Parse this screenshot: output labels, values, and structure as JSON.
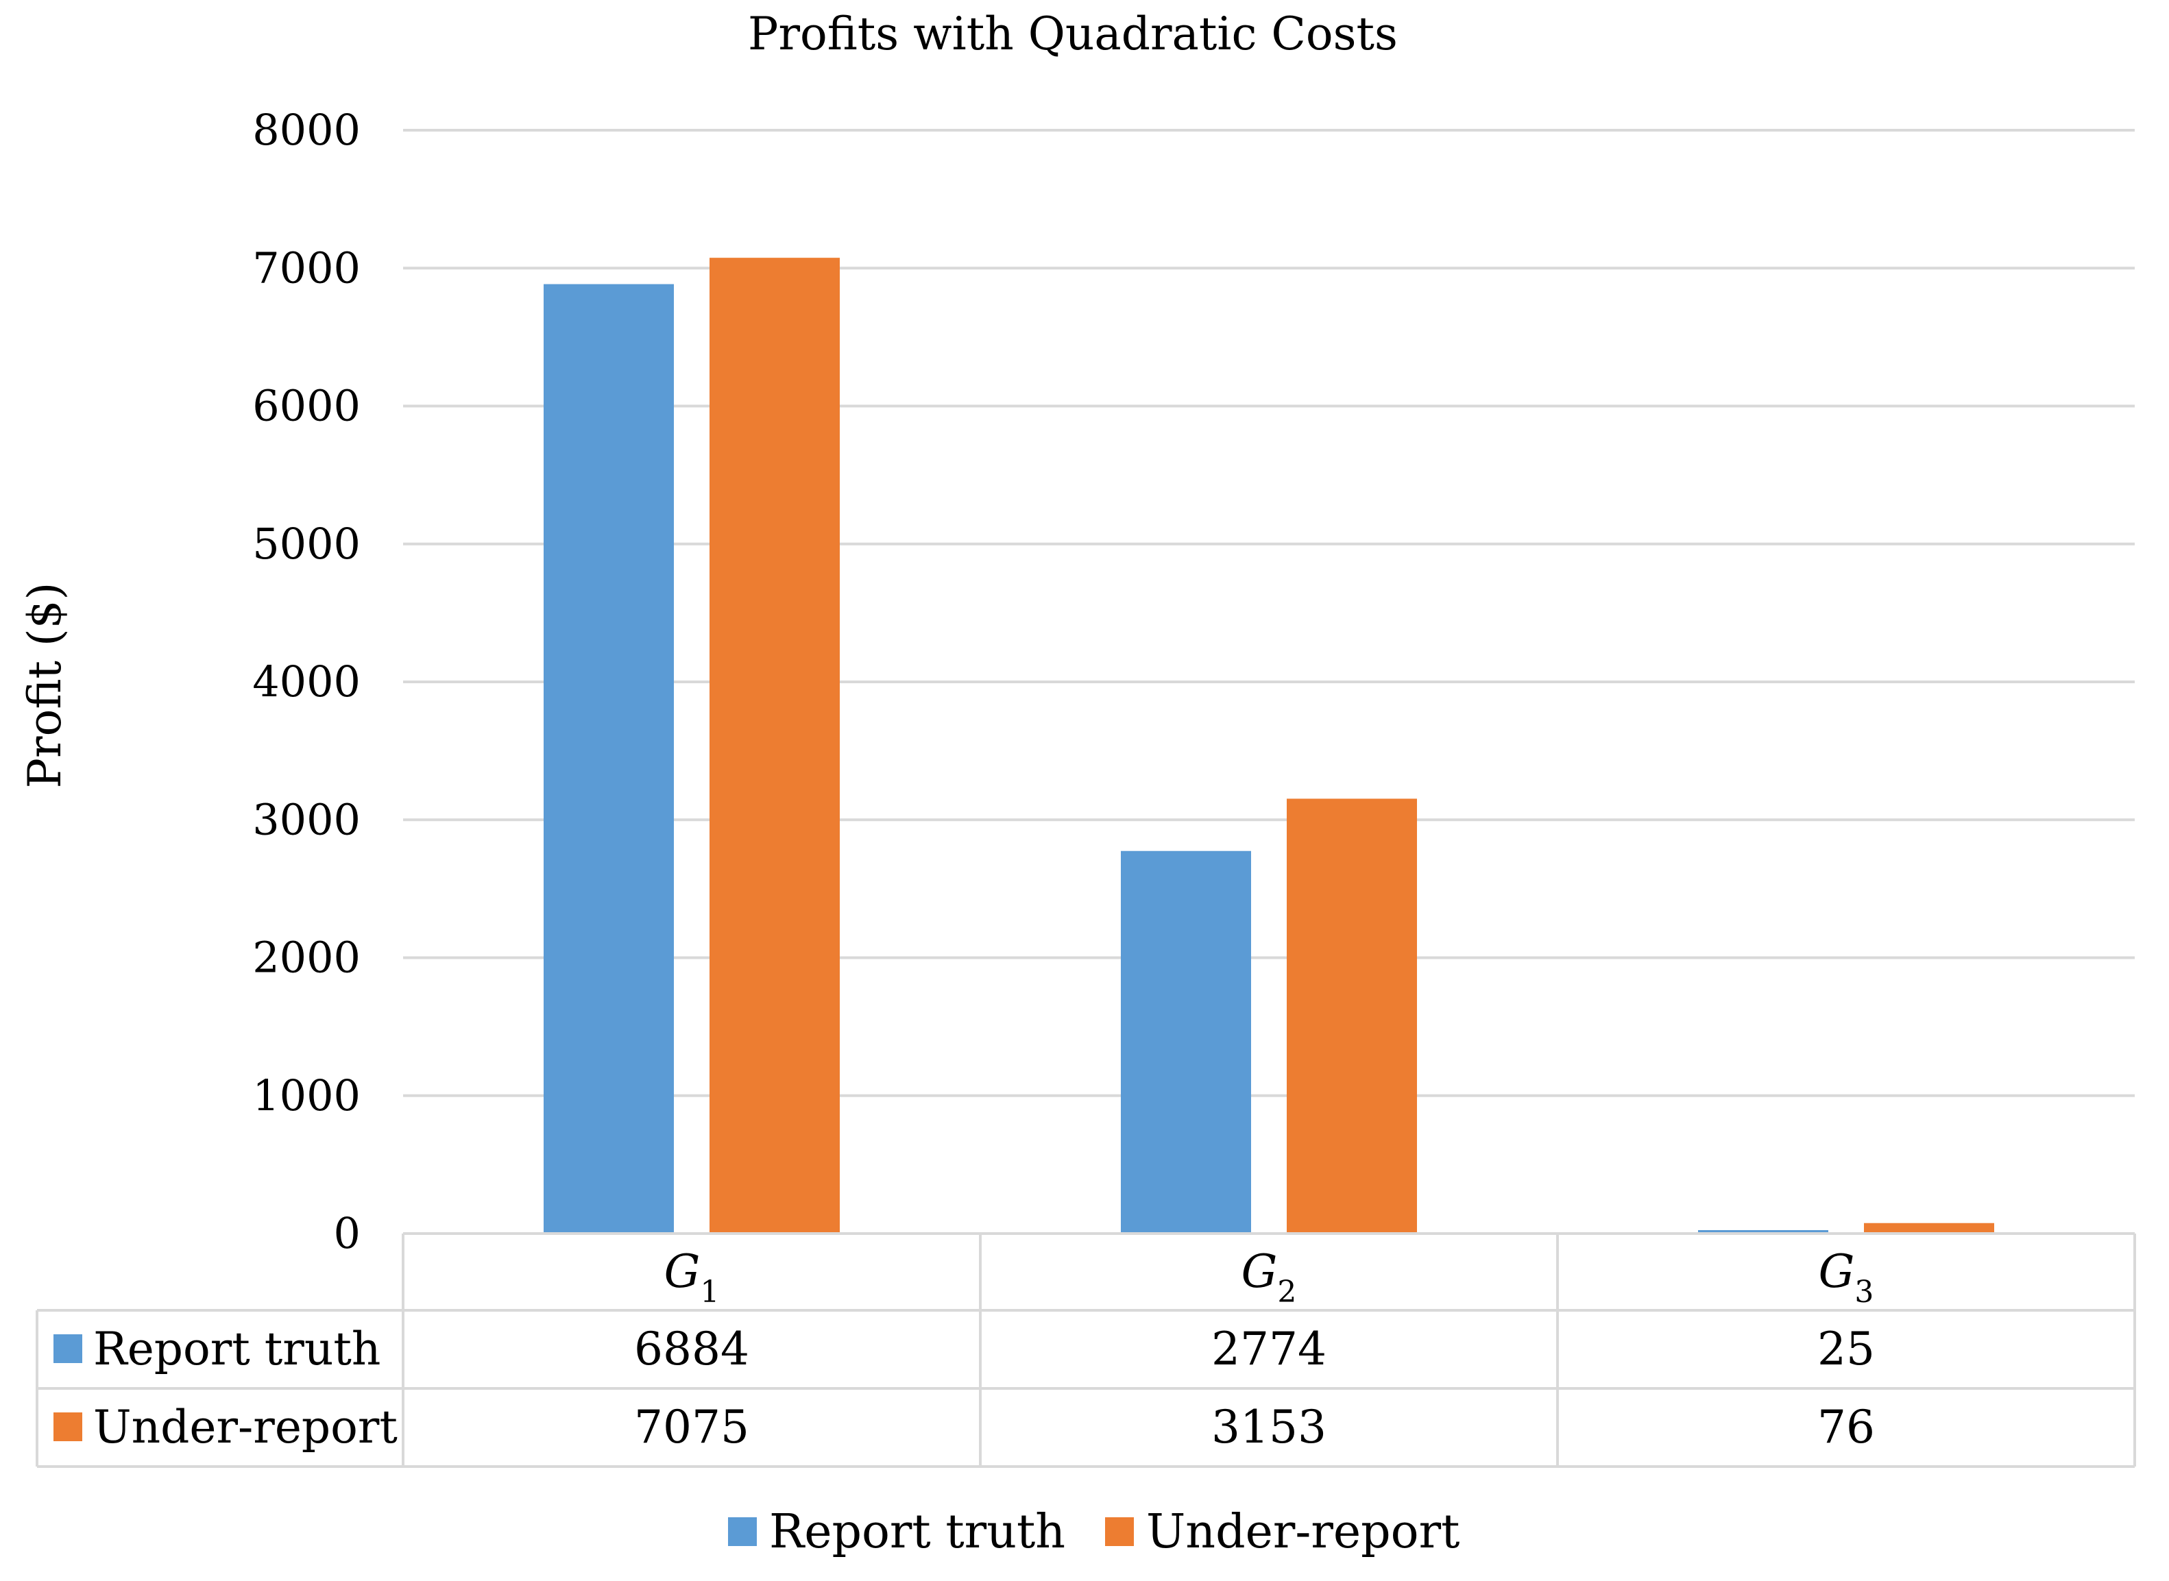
{
  "chart_data": {
    "type": "bar",
    "title": "Profits with Quadratic Costs",
    "xlabel": "",
    "ylabel": "Profit ($)",
    "ylim": [
      0,
      8000
    ],
    "yticks": [
      0,
      1000,
      2000,
      3000,
      4000,
      5000,
      6000,
      7000,
      8000
    ],
    "grid": true,
    "legend_position": "bottom",
    "categories": [
      {
        "base": "G",
        "sub": "1"
      },
      {
        "base": "G",
        "sub": "2"
      },
      {
        "base": "G",
        "sub": "3"
      }
    ],
    "series": [
      {
        "name": "Report truth",
        "color": "#5B9BD5",
        "values": [
          6884,
          2774,
          25
        ]
      },
      {
        "name": "Under-report",
        "color": "#ED7D31",
        "values": [
          7075,
          3153,
          76
        ]
      }
    ],
    "data_table": true
  }
}
